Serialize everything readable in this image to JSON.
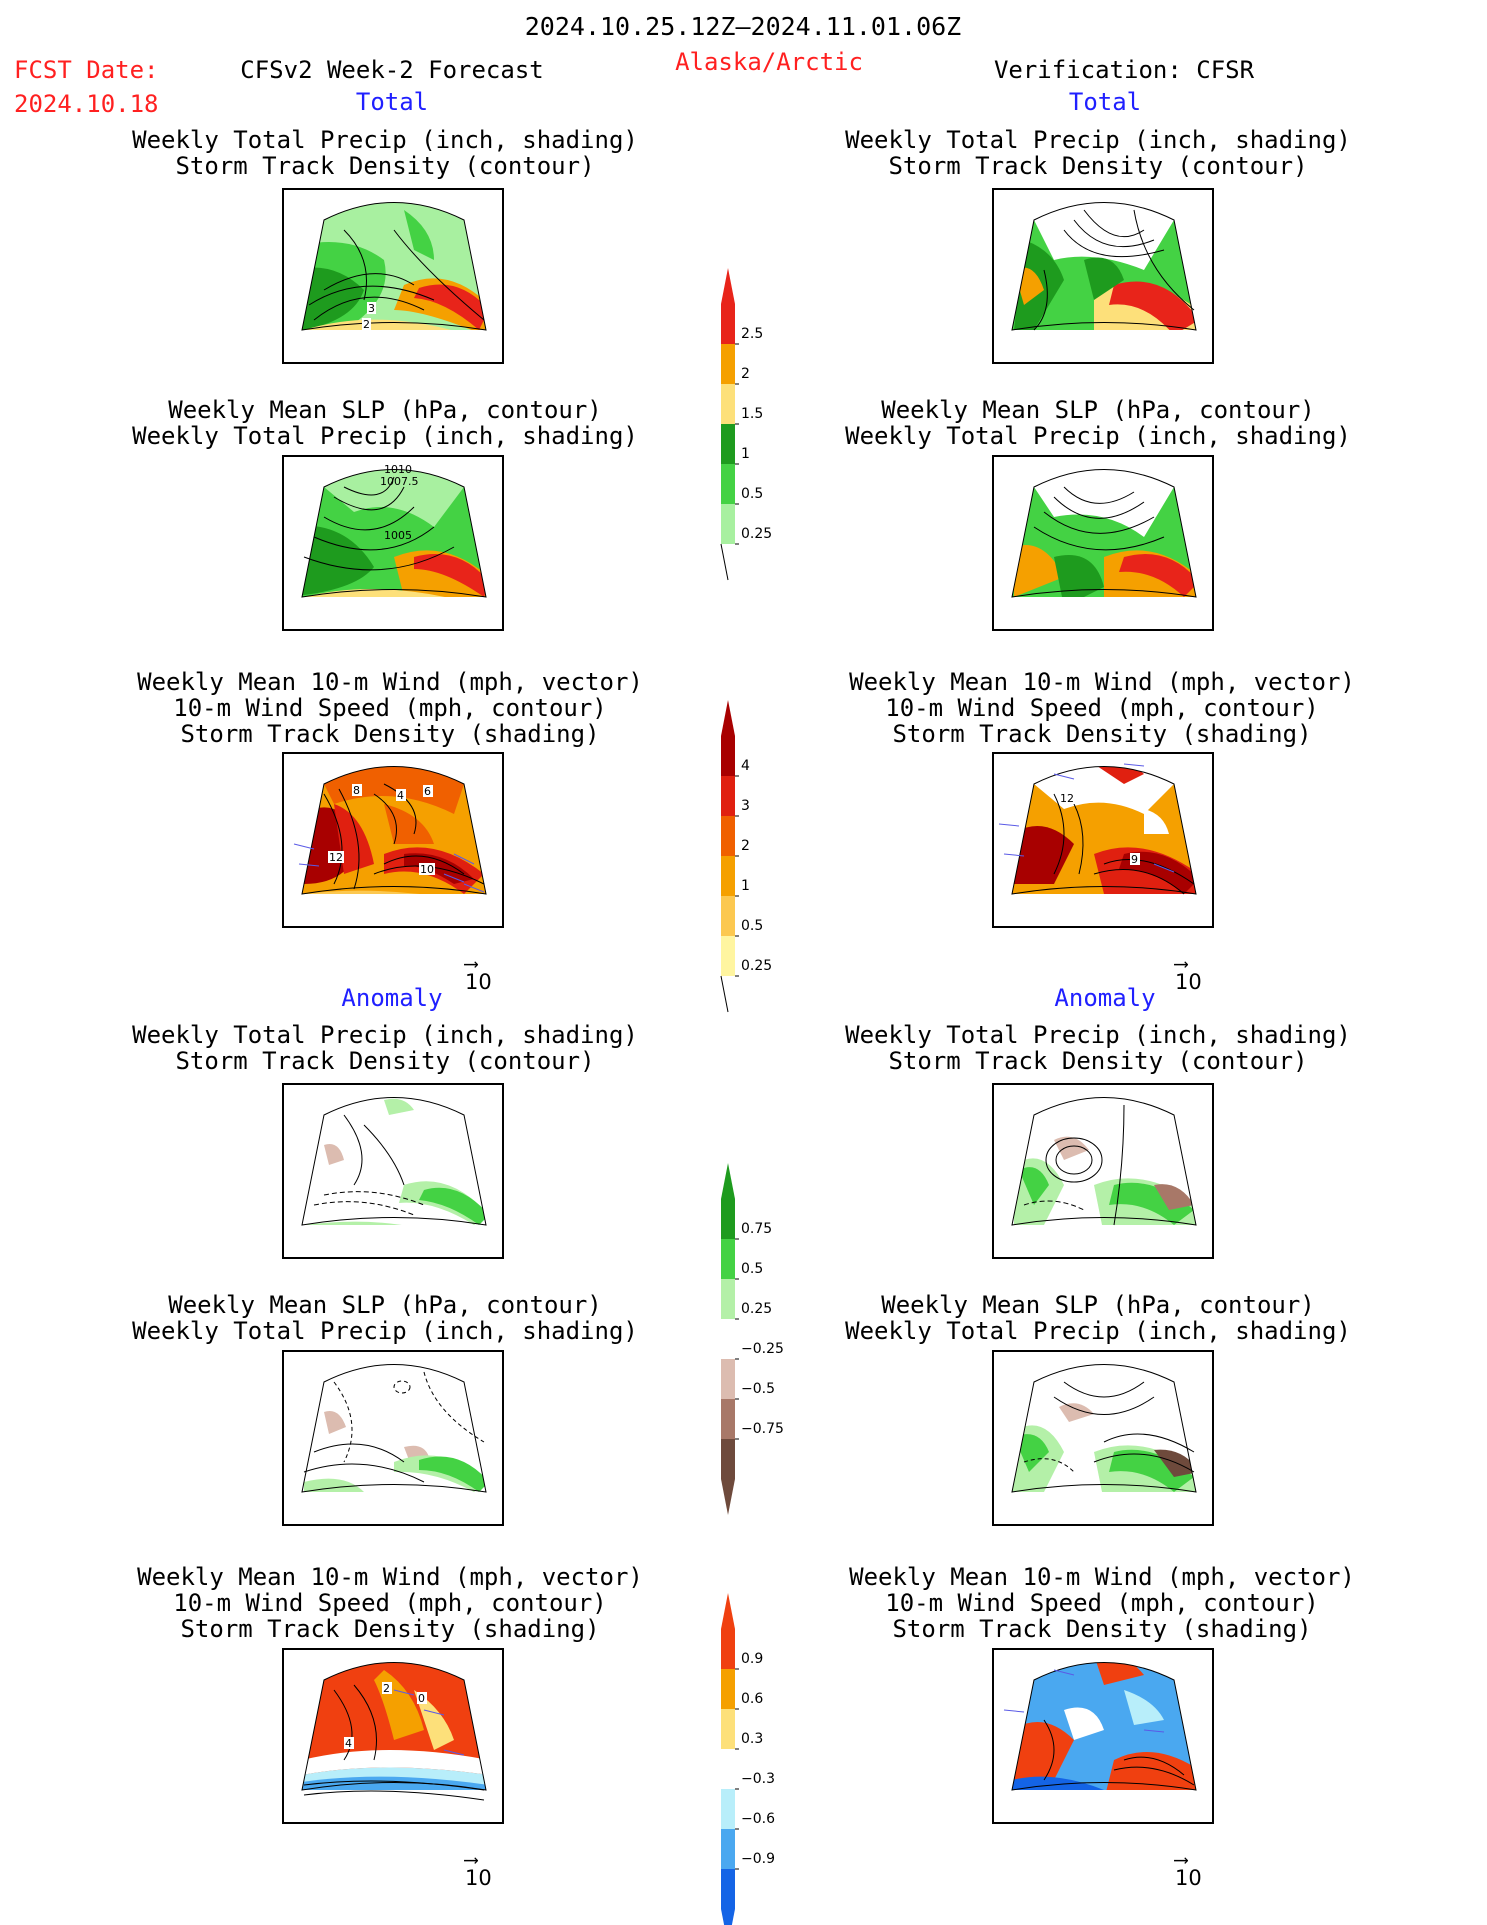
{
  "header": {
    "period": "2024.10.25.12Z–2024.11.01.06Z",
    "fcst_label": "FCST Date:",
    "fcst_date": "2024.10.18",
    "left_title": "CFSv2 Week-2 Forecast",
    "region": "Alaska/Arctic",
    "right_title": "Verification: CFSR"
  },
  "sections": {
    "total": "Total",
    "anomaly": "Anomaly"
  },
  "captions": {
    "precip_storm": [
      "Weekly Total Precip (inch, shading)",
      "Storm Track Density (contour)"
    ],
    "slp_precip": [
      "Weekly Mean SLP (hPa, contour)",
      "Weekly Total Precip (inch, shading)"
    ],
    "wind_storm": [
      "Weekly Mean 10-m Wind (mph, vector)",
      "10-m Wind Speed (mph, contour)",
      "Storm Track Density (shading)"
    ]
  },
  "vector_ref": "10",
  "map_labels": {
    "fc_precip": [
      "3",
      "2"
    ],
    "fc_slp": [
      "1010",
      "1007.5",
      "1005"
    ],
    "fc_wind": [
      "8",
      "4",
      "6",
      "12",
      "10"
    ],
    "ver_wind": [
      "12",
      "9"
    ],
    "fc_wind_anom": [
      "2",
      "0",
      "4"
    ]
  },
  "colorbars": {
    "precip_total": [
      "2.5",
      "2",
      "1.5",
      "1",
      "0.5",
      "0.25"
    ],
    "storm_total": [
      "4",
      "3",
      "2",
      "1",
      "0.5",
      "0.25"
    ],
    "precip_anom": [
      "0.75",
      "0.5",
      "0.25",
      "−0.25",
      "−0.5",
      "−0.75"
    ],
    "storm_anom": [
      "0.9",
      "0.6",
      "0.3",
      "−0.3",
      "−0.6",
      "−0.9"
    ]
  },
  "colors": {
    "precip_total": [
      "#e8241a",
      "#f5a000",
      "#fde07a",
      "#1e9b1e",
      "#44d244",
      "#a8f0a0"
    ],
    "storm_total": [
      "#a80000",
      "#e02010",
      "#f06000",
      "#f5a000",
      "#fcc850",
      "#fff5a0"
    ],
    "precip_anom": [
      "#1e9b1e",
      "#44d244",
      "#b4f0a8",
      "#dcbcb0",
      "#a87868",
      "#6e4a3c"
    ],
    "storm_anom": [
      "#f04010",
      "#f5a000",
      "#fde07a",
      "#b8eefa",
      "#4aa8f0",
      "#1464e6"
    ]
  }
}
